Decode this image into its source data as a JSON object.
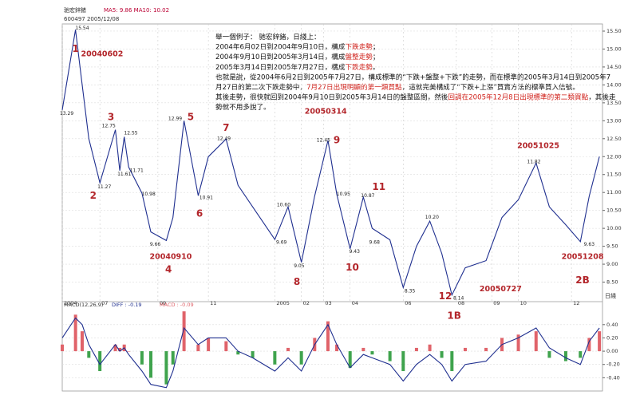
{
  "header": [
    "驰宏鋅鍺",
    "600497  2005/12/08",
    "MA5: 9.86  MA10: 10.02"
  ],
  "period_label": "日綫",
  "text_block": [
    [
      {
        "text": "舉一個例子：  驰宏鋅鍺，日綫上："
      }
    ],
    [
      {
        "text": "2004年6月02日到2004年9月10日，構成"
      },
      {
        "text": "下跌走勢",
        "highlight": true
      },
      {
        "text": "；"
      }
    ],
    [
      {
        "text": "2004年9月10日到2005年3月14日，構成"
      },
      {
        "text": "盤整走勢",
        "highlight": true
      },
      {
        "text": "；"
      }
    ],
    [
      {
        "text": "2005年3月14日到2005年7月27日，構成"
      },
      {
        "text": "下跌走勢",
        "highlight": true
      },
      {
        "text": "。"
      }
    ],
    [
      {
        "text": "也就是說，從2004年6月2日到2005年7月27日，構成標準的“下跌+盤整+下跌”的走勢，而在標準的2005年3月14日到2005年7"
      }
    ],
    [
      {
        "text": "月27日的第二次下跌走勢中，"
      },
      {
        "text": "7月27日出現明顯的第一類買點",
        "highlight": true
      },
      {
        "text": "，這就完美構成了“下跌+上漲”買賣方法的標準買入信號。"
      }
    ],
    [
      {
        "text": "其後走勢，很快就回到2004年9月10日到2005年3月14日的盤整區間，然後"
      },
      {
        "text": "回調在2005年12月8日出現標準的第二類買點",
        "highlight": true
      },
      {
        "text": "，其後走"
      }
    ],
    [
      {
        "text": "勢就不用多說了。"
      }
    ]
  ],
  "chart_data": [
    {
      "type": "line",
      "x": [
        0,
        3,
        4.5,
        6,
        8.5,
        12,
        13,
        14,
        15,
        18,
        20,
        23.5,
        25,
        27.5,
        30.7,
        33,
        37,
        39.7,
        43,
        48,
        51,
        54,
        57,
        60,
        62,
        65,
        68,
        70,
        74,
        77,
        80,
        83,
        85.7,
        88,
        91,
        95.7,
        99.3,
        103,
        107,
        110,
        113.7,
        117,
        119,
        121.3
      ],
      "series": [
        {
          "name": "驰宏鋅鍺",
          "color": "#1f2f8f",
          "values": [
            13.3,
            15.54,
            14.0,
            12.5,
            11.27,
            12.75,
            11.61,
            12.55,
            11.71,
            10.98,
            9.9,
            9.66,
            10.3,
            13.0,
            10.91,
            12.0,
            12.49,
            11.2,
            10.6,
            9.69,
            10.6,
            9.05,
            10.9,
            12.45,
            10.95,
            9.43,
            10.87,
            10.0,
            9.68,
            8.35,
            9.5,
            10.2,
            9.3,
            8.14,
            8.9,
            9.1,
            10.3,
            10.8,
            11.82,
            10.6,
            10.1,
            9.63,
            10.9,
            12.0
          ]
        }
      ],
      "xlim": [
        0,
        122
      ],
      "ylim": [
        8,
        15.7
      ],
      "yticks": [
        {
          "value": 15.5,
          "label": "15.50"
        },
        {
          "value": 15,
          "label": "15.00"
        },
        {
          "value": 14.5,
          "label": "14.50"
        },
        {
          "value": 14,
          "label": "14.00"
        },
        {
          "value": 13.5,
          "label": "13.50"
        },
        {
          "value": 13,
          "label": "13.00"
        },
        {
          "value": 12.5,
          "label": "12.50"
        },
        {
          "value": 12,
          "label": "12.00"
        },
        {
          "value": 11.5,
          "label": "11.50"
        },
        {
          "value": 11,
          "label": "11.00"
        },
        {
          "value": 10.5,
          "label": "10.50"
        },
        {
          "value": 10,
          "label": "10.00"
        },
        {
          "value": 9.5,
          "label": "9.50"
        },
        {
          "value": 9,
          "label": "9.00"
        },
        {
          "value": 8.5,
          "label": "8.50"
        }
      ],
      "xticks": [
        {
          "value": 0,
          "label": "2004"
        },
        {
          "value": 8.5,
          "label": "07"
        },
        {
          "value": 21.6,
          "label": "09"
        },
        {
          "value": 33,
          "label": "11"
        },
        {
          "value": 48,
          "label": "2005"
        },
        {
          "value": 54,
          "label": "02"
        },
        {
          "value": 59,
          "label": "03"
        },
        {
          "value": 65,
          "label": "04"
        },
        {
          "value": 77,
          "label": "06"
        },
        {
          "value": 89,
          "label": "08"
        },
        {
          "value": 97,
          "label": "09"
        },
        {
          "value": 103,
          "label": "10"
        },
        {
          "value": 115,
          "label": "12"
        }
      ],
      "annotations": [
        {
          "text": "1",
          "x": 3,
          "y": 15.0,
          "style": "number"
        },
        {
          "text": "20040602",
          "x": 9,
          "y": 14.85,
          "style": "date"
        },
        {
          "text": "15.54",
          "x": 4.5,
          "y": 15.58,
          "style": "price"
        },
        {
          "text": "13.29",
          "x": 1,
          "y": 13.2,
          "style": "price"
        },
        {
          "text": "2",
          "x": 7,
          "y": 10.9,
          "style": "number"
        },
        {
          "text": "11.27",
          "x": 9.5,
          "y": 11.15,
          "style": "price"
        },
        {
          "text": "3",
          "x": 11,
          "y": 13.1,
          "style": "number"
        },
        {
          "text": "12.75",
          "x": 10.5,
          "y": 12.85,
          "style": "price"
        },
        {
          "text": "11.61",
          "x": 14,
          "y": 11.5,
          "style": "price"
        },
        {
          "text": "12.55",
          "x": 15.5,
          "y": 12.65,
          "style": "price"
        },
        {
          "text": "11.71",
          "x": 16.8,
          "y": 11.6,
          "style": "price"
        },
        {
          "text": "10.98",
          "x": 19.5,
          "y": 10.95,
          "style": "price"
        },
        {
          "text": "9.66",
          "x": 21,
          "y": 9.55,
          "style": "price"
        },
        {
          "text": "20040910",
          "x": 24.5,
          "y": 9.2,
          "style": "date"
        },
        {
          "text": "4",
          "x": 24,
          "y": 8.85,
          "style": "number"
        },
        {
          "text": "12.99",
          "x": 25.5,
          "y": 13.05,
          "style": "price"
        },
        {
          "text": "5",
          "x": 29,
          "y": 13.1,
          "style": "number"
        },
        {
          "text": "10.91",
          "x": 32.5,
          "y": 10.85,
          "style": "price"
        },
        {
          "text": "6",
          "x": 31,
          "y": 10.4,
          "style": "number"
        },
        {
          "text": "7",
          "x": 37,
          "y": 12.8,
          "style": "number"
        },
        {
          "text": "12.49",
          "x": 36.5,
          "y": 12.5,
          "style": "price"
        },
        {
          "text": "10.60",
          "x": 50,
          "y": 10.65,
          "style": "price"
        },
        {
          "text": "9.69",
          "x": 49.5,
          "y": 9.6,
          "style": "price"
        },
        {
          "text": "9.05",
          "x": 53.5,
          "y": 8.95,
          "style": "price"
        },
        {
          "text": "8",
          "x": 53,
          "y": 8.5,
          "style": "number"
        },
        {
          "text": "20050314",
          "x": 59.5,
          "y": 13.25,
          "style": "date"
        },
        {
          "text": "9",
          "x": 62,
          "y": 12.45,
          "style": "number"
        },
        {
          "text": "12.45",
          "x": 59,
          "y": 12.45,
          "style": "price"
        },
        {
          "text": "10.95",
          "x": 63.5,
          "y": 10.95,
          "style": "price"
        },
        {
          "text": "9.43",
          "x": 66,
          "y": 9.35,
          "style": "price"
        },
        {
          "text": "10",
          "x": 65.5,
          "y": 8.9,
          "style": "number"
        },
        {
          "text": "10.87",
          "x": 69,
          "y": 10.9,
          "style": "price"
        },
        {
          "text": "11",
          "x": 71.5,
          "y": 11.15,
          "style": "number"
        },
        {
          "text": "9.68",
          "x": 70.5,
          "y": 9.6,
          "style": "price"
        },
        {
          "text": "10.20",
          "x": 83.5,
          "y": 10.3,
          "style": "price"
        },
        {
          "text": "8.35",
          "x": 78.5,
          "y": 8.25,
          "style": "price"
        },
        {
          "text": "12",
          "x": 86.5,
          "y": 8.1,
          "style": "number"
        },
        {
          "text": "8.14",
          "x": 89.5,
          "y": 8.05,
          "style": "price"
        },
        {
          "text": "20050727",
          "x": 99,
          "y": 8.3,
          "style": "date"
        },
        {
          "text": "1B",
          "x": 88.5,
          "y": 7.55,
          "style": "number"
        },
        {
          "text": "20051025",
          "x": 107.5,
          "y": 12.3,
          "style": "date"
        },
        {
          "text": "11.82",
          "x": 106.5,
          "y": 11.85,
          "style": "price"
        },
        {
          "text": "9.63",
          "x": 119,
          "y": 9.55,
          "style": "price"
        },
        {
          "text": "20051208",
          "x": 117.5,
          "y": 9.2,
          "style": "date"
        },
        {
          "text": "2B",
          "x": 117.5,
          "y": 8.55,
          "style": "number"
        }
      ],
      "grid": true
    },
    {
      "type": "macd",
      "title": "MACD(12,26,9)",
      "x": [
        0,
        3,
        4.5,
        6,
        8.5,
        12,
        13,
        14,
        15,
        18,
        20,
        23.5,
        25,
        27.5,
        30.7,
        33,
        37,
        39.7,
        43,
        48,
        51,
        54,
        57,
        60,
        62,
        65,
        68,
        70,
        74,
        77,
        80,
        83,
        85.7,
        88,
        91,
        95.7,
        99.3,
        103,
        107,
        110,
        113.7,
        117,
        119,
        121.3
      ],
      "series": [
        {
          "name": "MACD : -0.09",
          "values": [
            0.1,
            0.55,
            0.3,
            -0.1,
            -0.3,
            0.1,
            0.05,
            0.1,
            0,
            -0.2,
            -0.4,
            -0.5,
            -0.2,
            0.6,
            0.1,
            0.2,
            0.15,
            -0.05,
            -0.1,
            -0.2,
            0.05,
            -0.2,
            0.2,
            0.45,
            0.1,
            -0.25,
            0.05,
            -0.05,
            -0.15,
            -0.3,
            0.05,
            0.1,
            -0.1,
            -0.3,
            0.05,
            0.05,
            0.2,
            0.25,
            0.3,
            -0.1,
            -0.15,
            -0.1,
            0.2,
            0.3
          ],
          "colors": {
            "positive": "#e0636a",
            "negative": "#3fa34d"
          }
        },
        {
          "name": "DIFF : -0.19",
          "color": "#1f2f8f",
          "values": [
            0.2,
            0.5,
            0.4,
            0.1,
            -0.2,
            0.1,
            0,
            0.05,
            -0.05,
            -0.3,
            -0.5,
            -0.55,
            -0.3,
            0.35,
            0.1,
            0.2,
            0.2,
            0.0,
            -0.1,
            -0.3,
            -0.1,
            -0.3,
            0.1,
            0.4,
            0.1,
            -0.25,
            -0.05,
            -0.1,
            -0.2,
            -0.45,
            -0.2,
            -0.05,
            -0.2,
            -0.45,
            -0.2,
            -0.15,
            0.1,
            0.2,
            0.35,
            0.05,
            -0.1,
            -0.2,
            0.15,
            0.35
          ]
        }
      ],
      "xlim": [
        0,
        122
      ],
      "ylim": [
        -0.6,
        0.65
      ],
      "yticks": [
        {
          "value": 0.4,
          "label": "0.40"
        },
        {
          "value": 0.2,
          "label": "0.20"
        },
        {
          "value": 0,
          "label": "0.00"
        },
        {
          "value": -0.2,
          "label": "-0.20"
        },
        {
          "value": -0.4,
          "label": "-0.40"
        }
      ],
      "grid": true
    }
  ]
}
